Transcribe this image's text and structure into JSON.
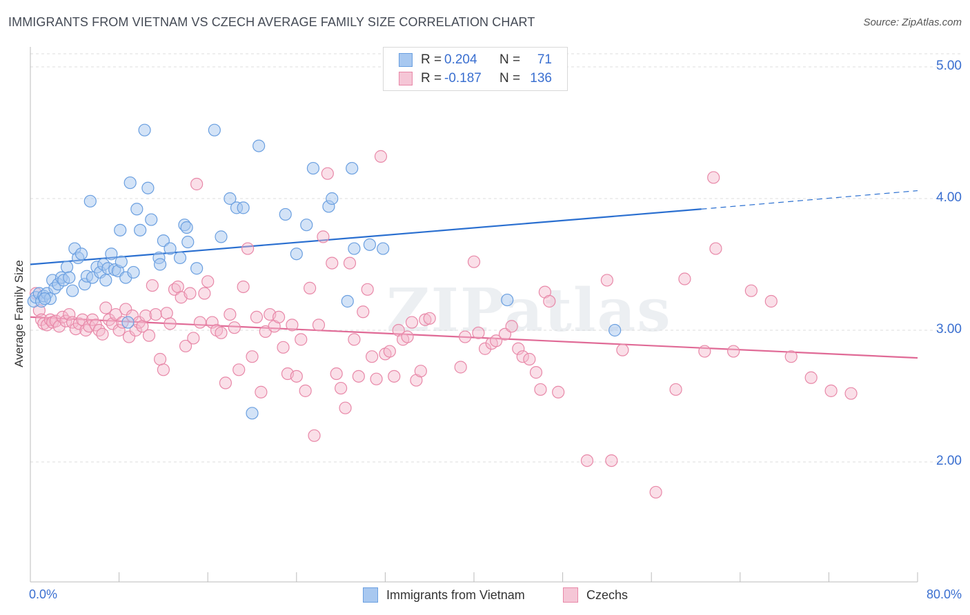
{
  "title": "IMMIGRANTS FROM VIETNAM VS CZECH AVERAGE FAMILY SIZE CORRELATION CHART",
  "source": "Source: ZipAtlas.com",
  "watermark": "ZIPatlas",
  "legend_top": {
    "rows": [
      {
        "r_label": "R =",
        "r_value": "0.204",
        "n_label": "N =",
        "n_value": "71"
      },
      {
        "r_label": "R =",
        "r_value": "-0.187",
        "n_label": "N =",
        "n_value": "136"
      }
    ]
  },
  "colors": {
    "blue_fill": "#a8c8f0",
    "blue_stroke": "#6a9fe0",
    "blue_line": "#2a6fd0",
    "pink_fill": "#f5b8cc",
    "pink_stroke": "#e888a8",
    "pink_line": "#e06a96",
    "axis_text": "#3a6fd0",
    "grid": "#dddddd"
  },
  "chart_data": {
    "type": "scatter",
    "title": "IMMIGRANTS FROM VIETNAM VS CZECH AVERAGE FAMILY SIZE CORRELATION CHART",
    "xlabel": "",
    "ylabel": "Average Family Size",
    "xlim": [
      0,
      80
    ],
    "ylim": [
      1.0,
      5.15
    ],
    "x_tick_labels": [
      "0.0%",
      "80.0%"
    ],
    "y_ticks": [
      2.0,
      3.0,
      4.0,
      5.0
    ],
    "y_tick_labels": [
      "2.00",
      "3.00",
      "4.00",
      "5.00"
    ],
    "grid": "horizontal dashed",
    "legend_position": "bottom",
    "series": [
      {
        "name": "Immigrants from Vietnam",
        "trend": {
          "x0": 0,
          "y0": 3.5,
          "x1": 60.5,
          "y1": 3.92,
          "dashed_to_x": 80,
          "dashed_to_y": 4.06
        },
        "points": [
          [
            0.3,
            3.22
          ],
          [
            0.5,
            3.25
          ],
          [
            0.8,
            3.28
          ],
          [
            1.0,
            3.22
          ],
          [
            1.2,
            3.26
          ],
          [
            1.5,
            3.28
          ],
          [
            1.8,
            3.24
          ],
          [
            2.0,
            3.38
          ],
          [
            2.2,
            3.32
          ],
          [
            2.5,
            3.35
          ],
          [
            2.8,
            3.4
          ],
          [
            3.0,
            3.38
          ],
          [
            3.3,
            3.48
          ],
          [
            3.5,
            3.4
          ],
          [
            3.8,
            3.3
          ],
          [
            4.0,
            3.62
          ],
          [
            4.3,
            3.55
          ],
          [
            4.6,
            3.58
          ],
          [
            4.9,
            3.35
          ],
          [
            5.1,
            3.41
          ],
          [
            5.4,
            3.98
          ],
          [
            5.6,
            3.4
          ],
          [
            6.0,
            3.48
          ],
          [
            6.3,
            3.44
          ],
          [
            6.6,
            3.5
          ],
          [
            6.8,
            3.38
          ],
          [
            7.0,
            3.47
          ],
          [
            7.3,
            3.58
          ],
          [
            7.6,
            3.46
          ],
          [
            7.9,
            3.45
          ],
          [
            8.1,
            3.76
          ],
          [
            8.2,
            3.52
          ],
          [
            8.6,
            3.4
          ],
          [
            8.8,
            3.06
          ],
          [
            9.0,
            4.12
          ],
          [
            9.3,
            3.44
          ],
          [
            9.6,
            3.92
          ],
          [
            9.9,
            3.76
          ],
          [
            10.3,
            4.52
          ],
          [
            10.6,
            4.08
          ],
          [
            10.9,
            3.84
          ],
          [
            11.6,
            3.55
          ],
          [
            11.7,
            3.5
          ],
          [
            12.0,
            3.68
          ],
          [
            12.6,
            3.62
          ],
          [
            13.5,
            3.55
          ],
          [
            13.9,
            3.8
          ],
          [
            14.1,
            3.78
          ],
          [
            14.2,
            3.67
          ],
          [
            15.0,
            3.47
          ],
          [
            16.6,
            4.52
          ],
          [
            17.2,
            3.71
          ],
          [
            18.0,
            4.0
          ],
          [
            18.6,
            3.93
          ],
          [
            19.2,
            3.93
          ],
          [
            20.0,
            2.37
          ],
          [
            20.6,
            4.4
          ],
          [
            23.0,
            3.88
          ],
          [
            24.0,
            3.58
          ],
          [
            24.9,
            3.8
          ],
          [
            25.5,
            4.23
          ],
          [
            26.9,
            3.94
          ],
          [
            27.2,
            4.0
          ],
          [
            28.6,
            3.22
          ],
          [
            29.0,
            4.23
          ],
          [
            29.2,
            3.62
          ],
          [
            30.6,
            3.65
          ],
          [
            31.8,
            3.62
          ],
          [
            43.0,
            3.23
          ],
          [
            52.7,
            3.0
          ],
          [
            1.3,
            3.24
          ]
        ]
      },
      {
        "name": "Czechs",
        "trend": {
          "x0": 0,
          "y0": 3.1,
          "x1": 80,
          "y1": 2.79
        },
        "points": [
          [
            0.5,
            3.28
          ],
          [
            0.8,
            3.15
          ],
          [
            1.0,
            3.08
          ],
          [
            1.2,
            3.05
          ],
          [
            1.5,
            3.04
          ],
          [
            1.8,
            3.08
          ],
          [
            2.0,
            3.06
          ],
          [
            2.3,
            3.07
          ],
          [
            2.6,
            3.03
          ],
          [
            2.9,
            3.1
          ],
          [
            3.2,
            3.07
          ],
          [
            3.5,
            3.12
          ],
          [
            3.8,
            3.06
          ],
          [
            4.1,
            3.01
          ],
          [
            4.4,
            3.05
          ],
          [
            4.7,
            3.08
          ],
          [
            5.0,
            3.0
          ],
          [
            5.3,
            3.03
          ],
          [
            5.6,
            3.08
          ],
          [
            5.9,
            3.04
          ],
          [
            6.2,
            3.0
          ],
          [
            6.5,
            2.97
          ],
          [
            6.8,
            3.17
          ],
          [
            7.1,
            3.08
          ],
          [
            7.4,
            3.05
          ],
          [
            7.7,
            3.12
          ],
          [
            8.0,
            3.0
          ],
          [
            8.3,
            3.06
          ],
          [
            8.6,
            3.16
          ],
          [
            8.9,
            2.95
          ],
          [
            9.2,
            3.11
          ],
          [
            9.5,
            3.0
          ],
          [
            9.8,
            3.06
          ],
          [
            10.1,
            3.03
          ],
          [
            10.4,
            3.11
          ],
          [
            10.7,
            2.96
          ],
          [
            11.0,
            3.34
          ],
          [
            11.3,
            3.12
          ],
          [
            11.7,
            2.78
          ],
          [
            12.0,
            2.7
          ],
          [
            12.3,
            3.13
          ],
          [
            12.6,
            3.05
          ],
          [
            13.0,
            3.31
          ],
          [
            13.3,
            3.33
          ],
          [
            13.6,
            3.25
          ],
          [
            14.0,
            2.88
          ],
          [
            14.4,
            3.28
          ],
          [
            14.7,
            2.94
          ],
          [
            15.0,
            4.11
          ],
          [
            15.3,
            3.06
          ],
          [
            15.7,
            3.28
          ],
          [
            16.0,
            3.37
          ],
          [
            16.4,
            3.06
          ],
          [
            16.8,
            3.0
          ],
          [
            17.2,
            2.98
          ],
          [
            17.6,
            2.6
          ],
          [
            18.0,
            3.12
          ],
          [
            18.4,
            3.02
          ],
          [
            18.8,
            2.7
          ],
          [
            19.2,
            3.33
          ],
          [
            19.6,
            3.62
          ],
          [
            20.0,
            2.8
          ],
          [
            20.4,
            3.1
          ],
          [
            20.8,
            2.53
          ],
          [
            21.2,
            2.99
          ],
          [
            21.6,
            3.12
          ],
          [
            22.0,
            3.03
          ],
          [
            22.4,
            3.1
          ],
          [
            22.8,
            2.87
          ],
          [
            23.2,
            2.67
          ],
          [
            23.6,
            3.04
          ],
          [
            24.0,
            2.65
          ],
          [
            24.4,
            2.93
          ],
          [
            24.8,
            2.54
          ],
          [
            25.2,
            3.32
          ],
          [
            25.6,
            2.2
          ],
          [
            26.0,
            3.04
          ],
          [
            26.4,
            3.71
          ],
          [
            26.8,
            4.19
          ],
          [
            27.2,
            3.51
          ],
          [
            27.6,
            2.67
          ],
          [
            28.0,
            2.56
          ],
          [
            28.4,
            2.41
          ],
          [
            28.8,
            3.51
          ],
          [
            29.2,
            2.93
          ],
          [
            29.6,
            2.65
          ],
          [
            30.0,
            3.14
          ],
          [
            30.4,
            3.31
          ],
          [
            30.8,
            2.8
          ],
          [
            31.2,
            2.63
          ],
          [
            31.6,
            4.32
          ],
          [
            32.0,
            2.82
          ],
          [
            32.4,
            2.84
          ],
          [
            32.8,
            2.65
          ],
          [
            33.2,
            3.0
          ],
          [
            33.6,
            2.93
          ],
          [
            34.0,
            2.95
          ],
          [
            34.4,
            3.06
          ],
          [
            34.8,
            2.62
          ],
          [
            35.2,
            2.69
          ],
          [
            35.6,
            3.08
          ],
          [
            36.0,
            3.09
          ],
          [
            38.8,
            2.72
          ],
          [
            39.2,
            2.95
          ],
          [
            40.0,
            3.52
          ],
          [
            40.4,
            2.98
          ],
          [
            41.0,
            2.86
          ],
          [
            41.6,
            2.9
          ],
          [
            42.0,
            2.92
          ],
          [
            42.8,
            2.97
          ],
          [
            43.4,
            3.03
          ],
          [
            44.0,
            2.86
          ],
          [
            44.4,
            2.8
          ],
          [
            45.0,
            2.78
          ],
          [
            45.6,
            2.68
          ],
          [
            46.0,
            2.55
          ],
          [
            46.4,
            3.29
          ],
          [
            46.8,
            3.22
          ],
          [
            47.6,
            2.53
          ],
          [
            50.2,
            2.01
          ],
          [
            52.0,
            3.38
          ],
          [
            52.4,
            2.01
          ],
          [
            53.4,
            2.85
          ],
          [
            56.4,
            1.77
          ],
          [
            58.2,
            2.55
          ],
          [
            59.0,
            3.39
          ],
          [
            60.8,
            2.84
          ],
          [
            61.6,
            4.16
          ],
          [
            61.8,
            3.62
          ],
          [
            63.4,
            2.84
          ],
          [
            65.0,
            3.3
          ],
          [
            66.8,
            3.22
          ],
          [
            68.6,
            2.8
          ],
          [
            70.4,
            2.64
          ],
          [
            72.2,
            2.54
          ],
          [
            74.0,
            2.52
          ]
        ]
      }
    ]
  },
  "legend_bottom": {
    "items": [
      "Immigrants from Vietnam",
      "Czechs"
    ]
  },
  "x_axis": {
    "left_label": "0.0%",
    "right_label": "80.0%"
  }
}
